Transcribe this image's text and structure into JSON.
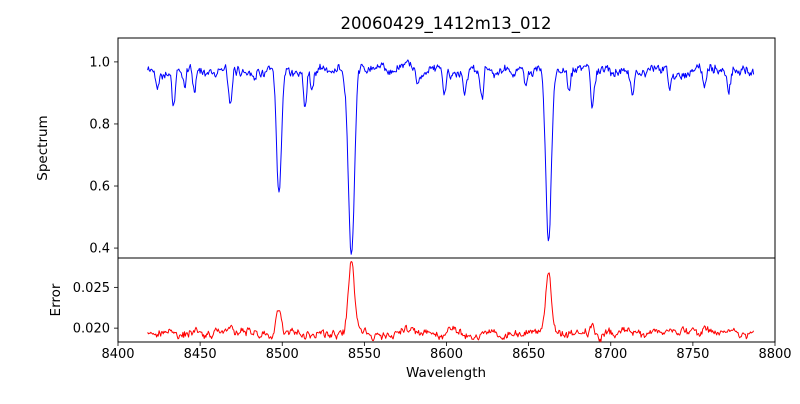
{
  "figure": {
    "title": "20060429_1412m13_012",
    "background": "#ffffff"
  },
  "chart_data": {
    "type": "line",
    "title": "20060429_1412m13_012",
    "xlabel": "Wavelength",
    "xlim": [
      8400,
      8800
    ],
    "xticks": [
      8400,
      8450,
      8500,
      8550,
      8600,
      8650,
      8700,
      8750,
      8800
    ],
    "x_data_range": [
      8418,
      8787
    ],
    "sampling_step": 0.5,
    "noise_seed": 42,
    "legend": "none",
    "grid": false,
    "panels": [
      {
        "name": "spectrum",
        "ylabel": "Spectrum",
        "color": "#0000ff",
        "ylim": [
          0.368,
          1.077
        ],
        "yticks": [
          0.4,
          0.6,
          0.8,
          1.0
        ],
        "ytick_labels": [
          "0.4",
          "0.6",
          "0.8",
          "1.0"
        ],
        "continuum": 0.972,
        "noise_amp": 0.02,
        "absorption_lines": [
          {
            "center": 8424.0,
            "depth": 0.05,
            "sigma": 0.9
          },
          {
            "center": 8433.8,
            "depth": 0.12,
            "sigma": 1.0
          },
          {
            "center": 8440.5,
            "depth": 0.06,
            "sigma": 0.8
          },
          {
            "center": 8446.5,
            "depth": 0.07,
            "sigma": 0.8
          },
          {
            "center": 8468.4,
            "depth": 0.13,
            "sigma": 1.1
          },
          {
            "center": 8498.0,
            "depth": 0.4,
            "sigma": 1.5
          },
          {
            "center": 8514.1,
            "depth": 0.11,
            "sigma": 0.9
          },
          {
            "center": 8518.1,
            "depth": 0.08,
            "sigma": 0.8
          },
          {
            "center": 8542.1,
            "depth": 0.59,
            "sigma": 1.8
          },
          {
            "center": 8582.3,
            "depth": 0.05,
            "sigma": 0.9
          },
          {
            "center": 8598.8,
            "depth": 0.08,
            "sigma": 0.9
          },
          {
            "center": 8611.0,
            "depth": 0.05,
            "sigma": 0.8
          },
          {
            "center": 8621.7,
            "depth": 0.08,
            "sigma": 0.9
          },
          {
            "center": 8648.5,
            "depth": 0.06,
            "sigma": 0.9
          },
          {
            "center": 8662.1,
            "depth": 0.56,
            "sigma": 1.7
          },
          {
            "center": 8674.7,
            "depth": 0.07,
            "sigma": 0.9
          },
          {
            "center": 8688.6,
            "depth": 0.12,
            "sigma": 1.0
          },
          {
            "center": 8713.2,
            "depth": 0.08,
            "sigma": 0.9
          },
          {
            "center": 8736.0,
            "depth": 0.06,
            "sigma": 0.9
          },
          {
            "center": 8757.1,
            "depth": 0.06,
            "sigma": 0.9
          },
          {
            "center": 8772.0,
            "depth": 0.07,
            "sigma": 0.9
          }
        ]
      },
      {
        "name": "error",
        "ylabel": "Error",
        "color": "#ff0000",
        "ylim": [
          0.0183,
          0.0286
        ],
        "yticks": [
          0.02,
          0.025
        ],
        "ytick_labels": [
          "0.020",
          "0.025"
        ],
        "baseline": 0.0194,
        "noise_amp": 0.0006,
        "error_peaks": [
          {
            "center": 8433.8,
            "height": 0.0007,
            "sigma": 1.2
          },
          {
            "center": 8468.4,
            "height": 0.0005,
            "sigma": 1.2
          },
          {
            "center": 8498.0,
            "height": 0.0034,
            "sigma": 1.6
          },
          {
            "center": 8542.1,
            "height": 0.0084,
            "sigma": 1.8
          },
          {
            "center": 8662.1,
            "height": 0.0074,
            "sigma": 1.7
          },
          {
            "center": 8688.6,
            "height": 0.0008,
            "sigma": 1.2
          },
          {
            "center": 8757.1,
            "height": 0.0005,
            "sigma": 1.2
          }
        ]
      }
    ]
  }
}
